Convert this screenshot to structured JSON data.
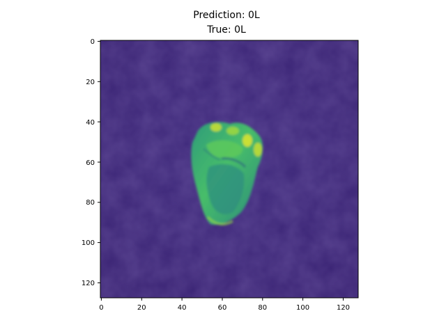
{
  "figure": {
    "title_line1": "Prediction: 0L",
    "title_line2": "True: 0L",
    "image_description_semantic": "fist-hand-image",
    "colormap": "viridis",
    "background_color": "#3f2a7d",
    "hand_colors": [
      "#2a8a7c",
      "#3cb36e",
      "#7cd24c",
      "#d6e32c"
    ]
  },
  "axes": {
    "x_ticks": [
      "0",
      "20",
      "40",
      "60",
      "80",
      "100",
      "120"
    ],
    "y_ticks": [
      "0",
      "20",
      "40",
      "60",
      "80",
      "100",
      "120"
    ],
    "xlim": [
      -0.5,
      127.5
    ],
    "ylim": [
      127.5,
      -0.5
    ]
  }
}
